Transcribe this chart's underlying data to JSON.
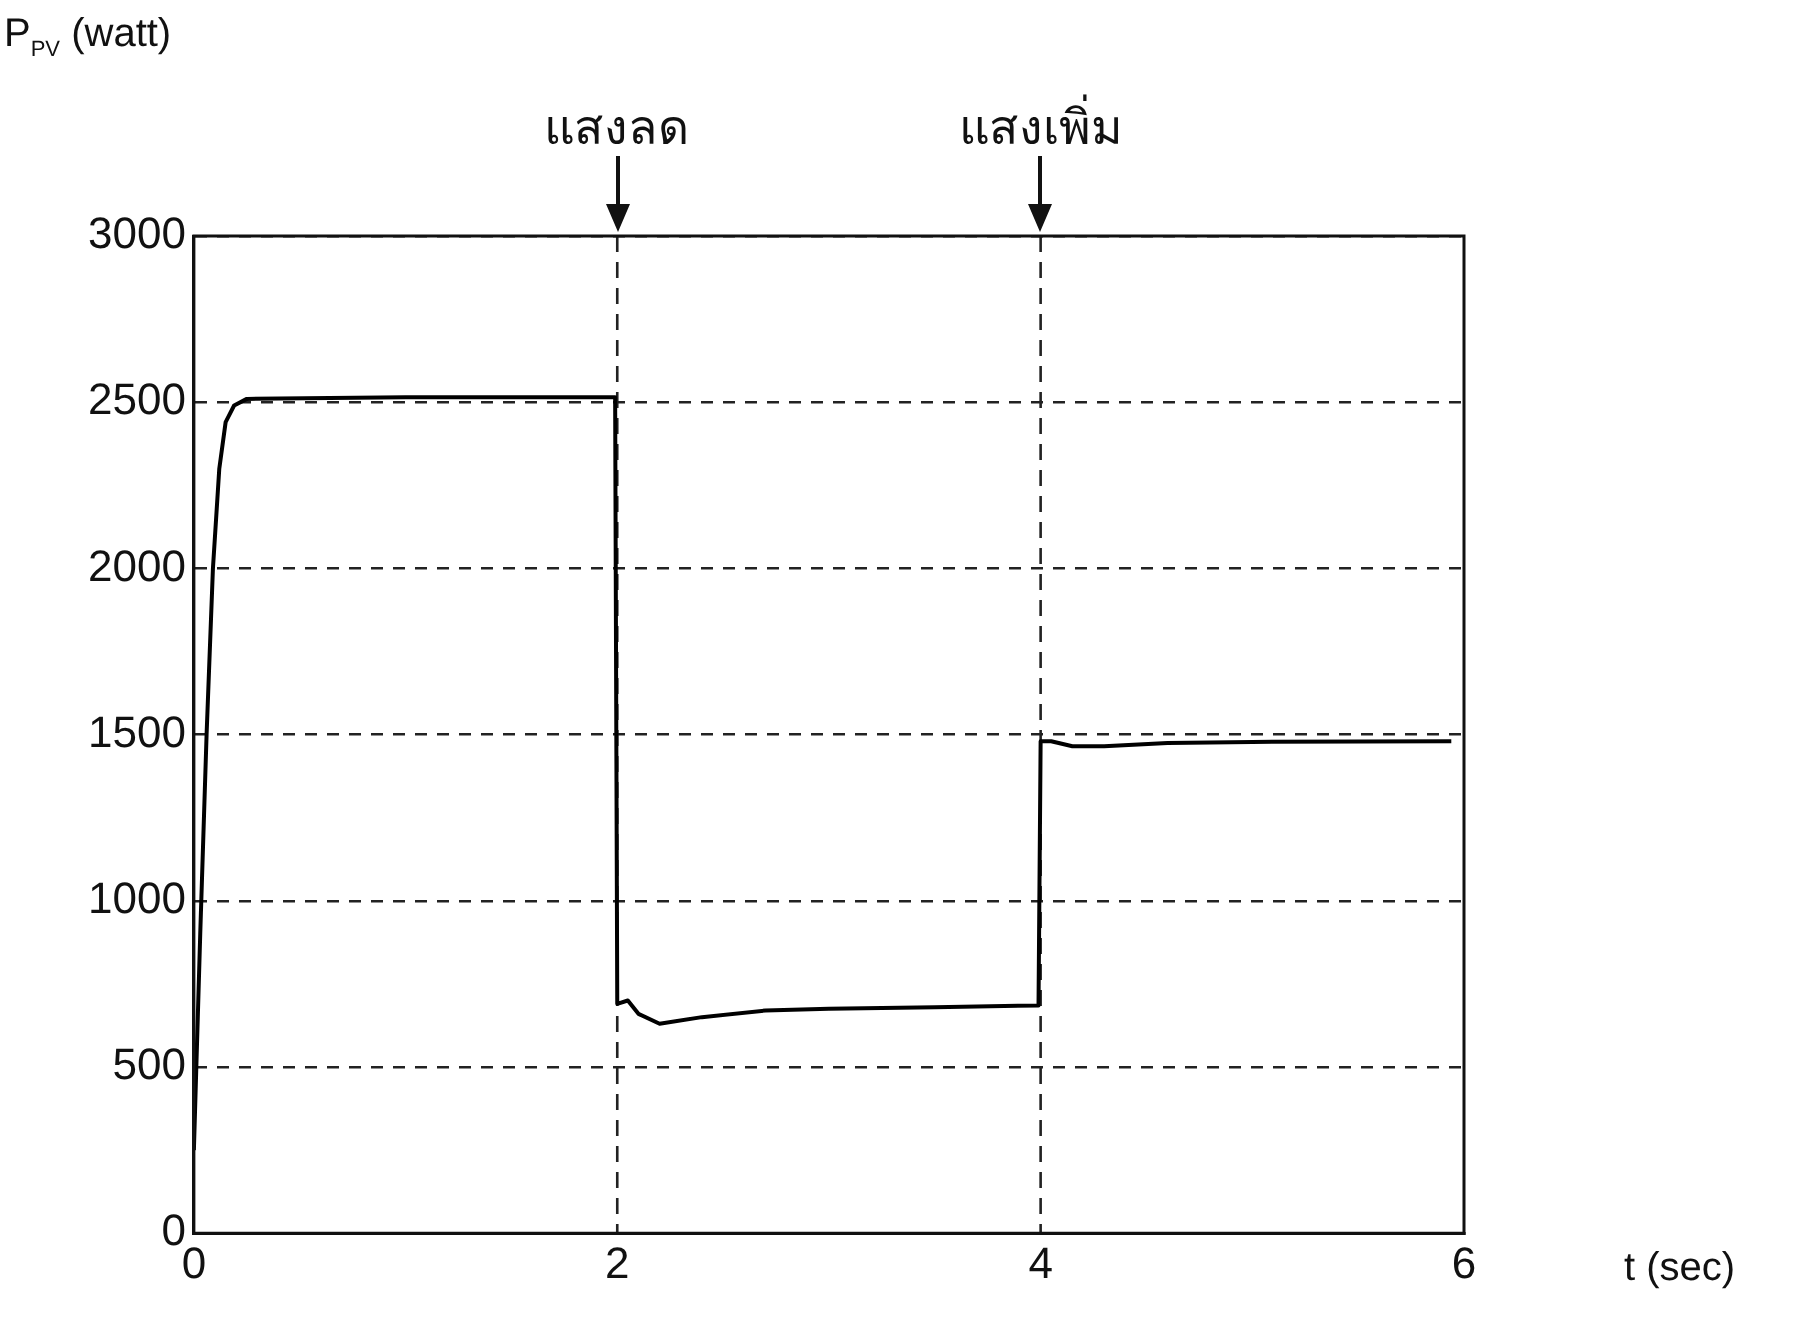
{
  "chart_data": {
    "type": "line",
    "ylabel": "P$_{PV}$ (watt)",
    "xlabel": "t (sec)",
    "x": [
      0,
      0.03,
      0.06,
      0.09,
      0.12,
      0.15,
      0.19,
      0.25,
      1,
      1.99,
      2,
      2.05,
      2.1,
      2.2,
      2.4,
      2.7,
      3,
      3.5,
      3.99,
      4,
      4.05,
      4.15,
      4.3,
      4.6,
      5,
      5.94
    ],
    "series": [
      {
        "color": "#000000",
        "values": [
          250,
          900,
          1500,
          2000,
          2300,
          2440,
          2490,
          2510,
          2515,
          2515,
          690,
          700,
          660,
          630,
          650,
          670,
          675,
          680,
          685,
          1480,
          1480,
          1465,
          1465,
          1475,
          1478,
          1480
        ]
      }
    ],
    "xlim": [
      0,
      6
    ],
    "xticks": [
      0,
      2,
      4,
      6
    ],
    "ylim": [
      0,
      3000
    ],
    "yticks": [
      0,
      500,
      1000,
      1500,
      2000,
      2500,
      3000
    ],
    "grid": "y",
    "legend": false,
    "marker": "none",
    "line_style": "solid",
    "ref_lines": [
      {
        "axis": "x",
        "value": 2,
        "label": "แสงลด",
        "line_style": "dashed"
      },
      {
        "axis": "x",
        "value": 4,
        "label": "แสงเพิ่ม",
        "line_style": "dashed"
      }
    ]
  }
}
